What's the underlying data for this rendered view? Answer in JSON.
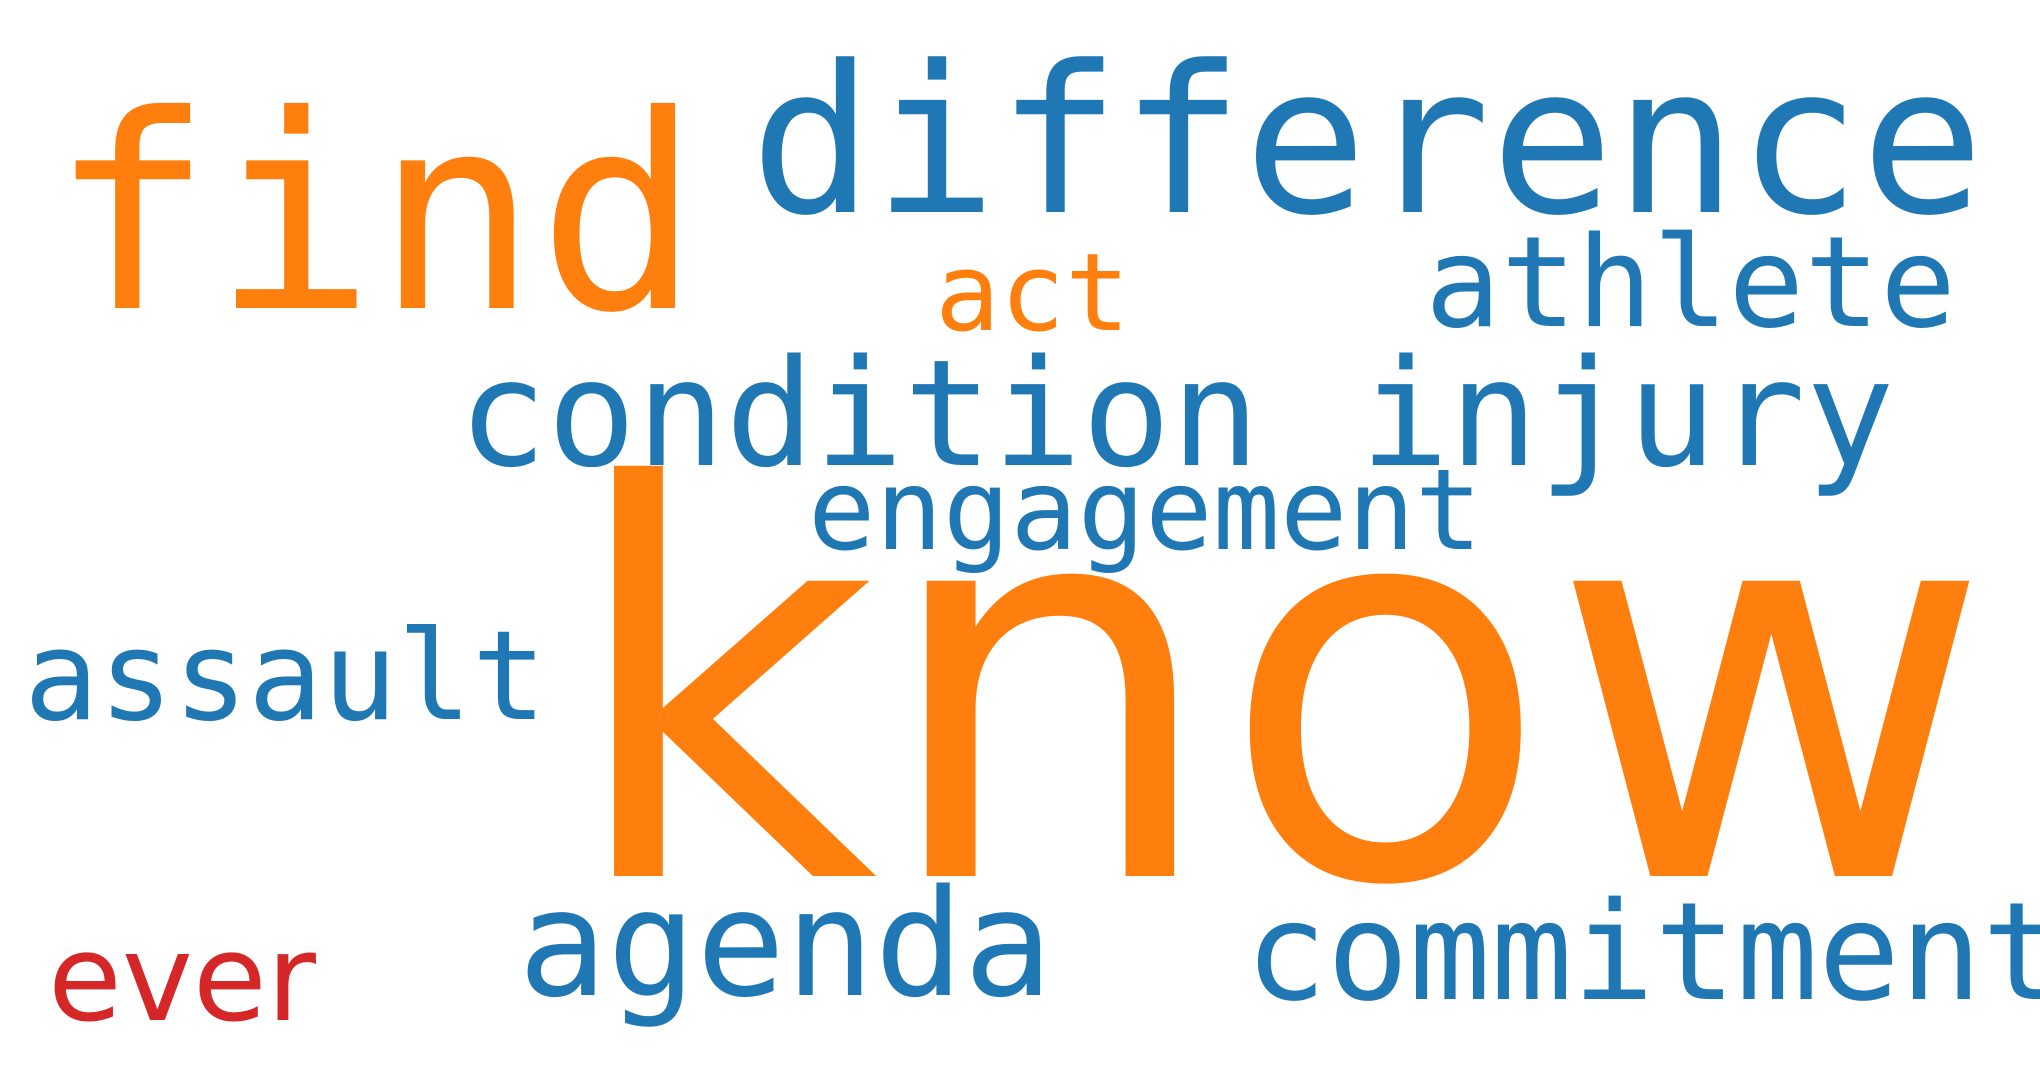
{
  "colors": {
    "blue": "#1f77b4",
    "orange": "#ff7f0e",
    "red": "#d62728",
    "background": "#ffffff"
  },
  "words": {
    "find": "find",
    "difference": "difference",
    "act": "act",
    "athlete": "athlete",
    "condition": "condition",
    "injury": "injury",
    "engagement": "engagement",
    "know": "know",
    "assault": "assault",
    "agenda": "agenda",
    "commitment": "commitment",
    "ever": "ever"
  },
  "word_colors": {
    "find": "#ff7f0e",
    "difference": "#1f77b4",
    "act": "#ff7f0e",
    "athlete": "#1f77b4",
    "condition": "#1f77b4",
    "injury": "#1f77b4",
    "engagement": "#1f77b4",
    "know": "#ff7f0e",
    "assault": "#1f77b4",
    "agenda": "#1f77b4",
    "commitment": "#1f77b4",
    "ever": "#d62728"
  }
}
